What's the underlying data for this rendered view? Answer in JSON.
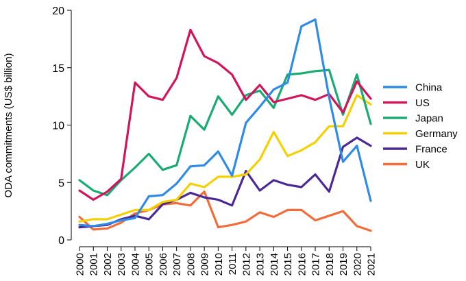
{
  "chart_data": {
    "type": "line",
    "ylabel": "ODA commitments (US$ billion)",
    "ylim": [
      0,
      20
    ],
    "yticks": [
      0,
      5,
      10,
      15,
      20
    ],
    "x": [
      "2000",
      "2001",
      "2002",
      "2003",
      "2004",
      "2005",
      "2006",
      "2007",
      "2008",
      "2009",
      "2010",
      "2011",
      "2012",
      "2013",
      "2014",
      "2015",
      "2016",
      "2017",
      "2018",
      "2019",
      "2020",
      "2021"
    ],
    "grid": false,
    "legend": "right",
    "series": [
      {
        "name": "China",
        "color": "#2e8be6",
        "values": [
          1.3,
          1.2,
          1.4,
          1.7,
          1.9,
          3.8,
          3.9,
          4.9,
          6.4,
          6.5,
          7.7,
          5.6,
          10.2,
          11.6,
          13.1,
          13.7,
          18.6,
          19.2,
          12.4,
          6.8,
          8.2,
          3.4
        ]
      },
      {
        "name": "US",
        "color": "#d2145a",
        "values": [
          4.3,
          3.5,
          4.2,
          5.3,
          13.7,
          12.5,
          12.2,
          14.1,
          18.3,
          16.0,
          15.4,
          14.4,
          12.2,
          13.5,
          12.0,
          12.3,
          12.6,
          12.2,
          12.7,
          11.1,
          13.8,
          12.3
        ]
      },
      {
        "name": "Japan",
        "color": "#1aab72",
        "values": [
          5.2,
          4.3,
          3.9,
          5.2,
          6.3,
          7.5,
          6.1,
          6.5,
          10.8,
          9.6,
          12.5,
          10.9,
          12.6,
          13.0,
          11.5,
          14.4,
          14.5,
          14.7,
          14.8,
          10.9,
          14.4,
          10.1
        ]
      },
      {
        "name": "Germany",
        "color": "#f5d000",
        "values": [
          1.6,
          1.8,
          1.8,
          2.2,
          2.6,
          2.6,
          3.3,
          3.5,
          4.9,
          4.6,
          5.5,
          5.5,
          5.7,
          7.0,
          9.4,
          7.3,
          7.8,
          8.5,
          9.9,
          9.9,
          12.6,
          11.8
        ]
      },
      {
        "name": "France",
        "color": "#4b2994",
        "values": [
          1.1,
          1.2,
          1.3,
          1.8,
          2.1,
          1.8,
          3.1,
          3.5,
          4.1,
          3.7,
          3.5,
          3.0,
          6.0,
          4.3,
          5.2,
          4.8,
          4.6,
          5.7,
          4.2,
          8.1,
          8.9,
          8.2
        ]
      },
      {
        "name": "UK",
        "color": "#f26b38",
        "values": [
          2.0,
          0.9,
          1.0,
          1.5,
          2.3,
          2.6,
          3.1,
          3.2,
          3.0,
          4.2,
          1.1,
          1.3,
          1.6,
          2.4,
          2.0,
          2.6,
          2.6,
          1.7,
          2.1,
          2.5,
          1.2,
          0.8
        ]
      }
    ]
  }
}
